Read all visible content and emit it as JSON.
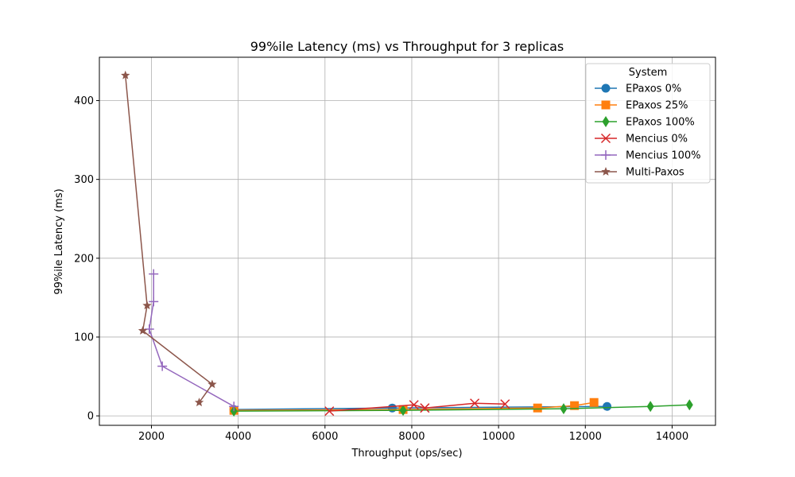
{
  "chart_data": {
    "type": "line",
    "title": "99%ile Latency (ms) vs Throughput for 3 replicas",
    "xlabel": "Throughput (ops/sec)",
    "ylabel": "99%ile Latency (ms)",
    "xlim": [
      800,
      15000
    ],
    "ylim": [
      -12,
      455
    ],
    "xticks": [
      2000,
      4000,
      6000,
      8000,
      10000,
      12000,
      14000
    ],
    "yticks": [
      0,
      100,
      200,
      300,
      400
    ],
    "grid": true,
    "legend": {
      "title": "System",
      "placement": "upper right"
    },
    "series": [
      {
        "name": "EPaxos 0%",
        "color": "#1f77b4",
        "marker": "circle",
        "points": [
          [
            3900,
            8
          ],
          [
            7550,
            10
          ],
          [
            12500,
            12
          ]
        ]
      },
      {
        "name": "EPaxos 25%",
        "color": "#ff7f0e",
        "marker": "square",
        "points": [
          [
            3900,
            7
          ],
          [
            7800,
            8
          ],
          [
            10900,
            10
          ],
          [
            11750,
            13
          ],
          [
            12200,
            17
          ]
        ]
      },
      {
        "name": "EPaxos 100%",
        "color": "#2ca02c",
        "marker": "diamond",
        "points": [
          [
            3900,
            6
          ],
          [
            7800,
            7
          ],
          [
            11500,
            9
          ],
          [
            13500,
            12
          ],
          [
            14400,
            14
          ]
        ]
      },
      {
        "name": "Mencius 0%",
        "color": "#d62728",
        "marker": "x",
        "points": [
          [
            6100,
            6
          ],
          [
            8050,
            14
          ],
          [
            8300,
            10
          ],
          [
            9450,
            16
          ],
          [
            10150,
            15
          ]
        ]
      },
      {
        "name": "Mencius 100%",
        "color": "#9467bd",
        "marker": "plus",
        "points": [
          [
            2050,
            180
          ],
          [
            2050,
            145
          ],
          [
            1950,
            110
          ],
          [
            2250,
            63
          ],
          [
            3900,
            12
          ]
        ]
      },
      {
        "name": "Multi-Paxos",
        "color": "#8c564b",
        "marker": "star",
        "points": [
          [
            1400,
            432
          ],
          [
            1900,
            140
          ],
          [
            1800,
            108
          ],
          [
            3400,
            40
          ],
          [
            3100,
            17
          ]
        ]
      }
    ]
  }
}
